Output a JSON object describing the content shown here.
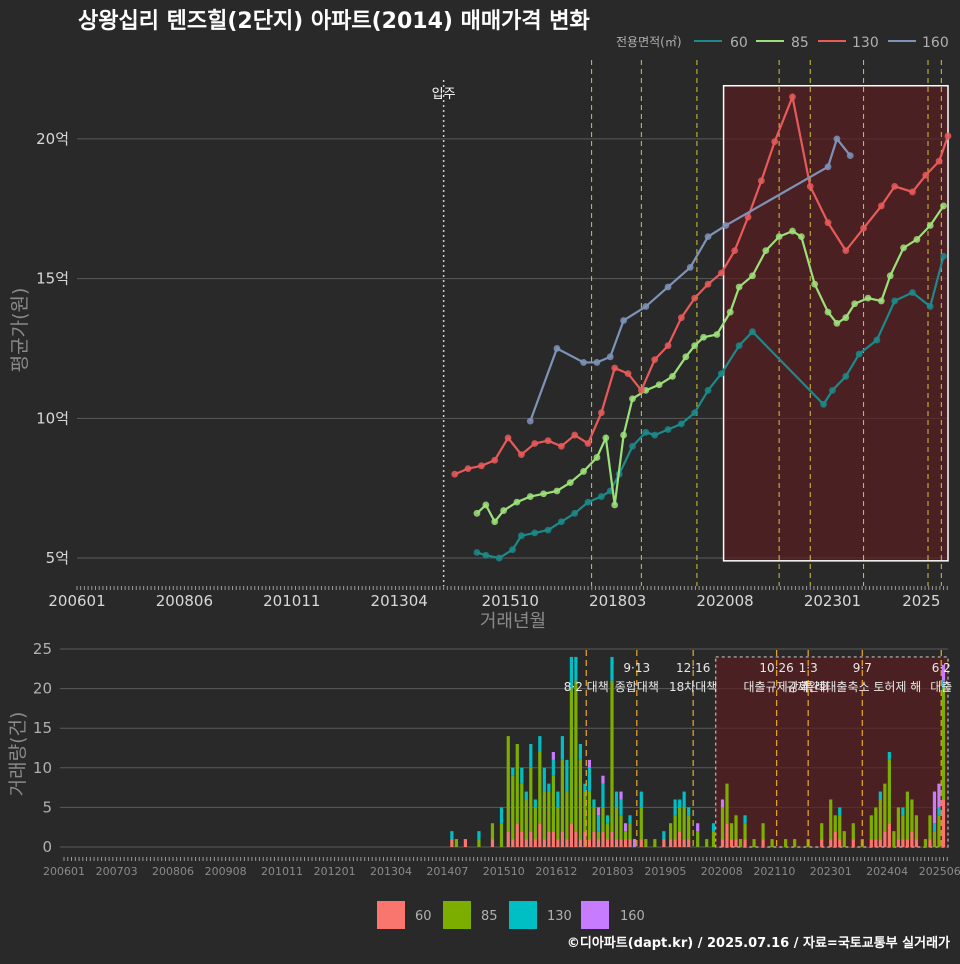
{
  "title": "상왕십리 텐즈힐(2단지) 아파트(2014) 매매가격 변화",
  "footer": "©디아파트(dapt.kr) / 2025.07.16 / 자료=국토교통부 실거래가",
  "colors": {
    "background": "#292929",
    "grid": "#5a5a5a",
    "s60": "#1b8a8a",
    "s85": "#9ce07a",
    "s130": "#e85a5a",
    "s160": "#7f93b8",
    "bar60": "#f8766d",
    "bar85": "#7cae00",
    "bar130": "#00bfc4",
    "bar160": "#c77cff",
    "policy_line": "#d4c43a",
    "highlight_fill": "#5a1d20"
  },
  "chart_data": [
    {
      "type": "line",
      "ylabel": "평균가(원)",
      "xlabel": "거래년월",
      "legend_title": "전용면적(㎡)",
      "legend": [
        "60",
        "85",
        "130",
        "160"
      ],
      "x_ticks": [
        "200601",
        "200806",
        "201011",
        "201304",
        "201510",
        "201803",
        "202008",
        "202301",
        "2025"
      ],
      "y_ticks": [
        "5억",
        "10억",
        "15억",
        "20억"
      ],
      "y_tick_values": [
        5,
        10,
        15,
        20
      ],
      "ylim": [
        4,
        23
      ],
      "xlim": [
        2006.0,
        2025.6
      ],
      "move_in_label": "입주",
      "move_in_x": 2014.25,
      "policy_lines": [
        2017.58,
        2018.7,
        2019.95,
        2021.8,
        2022.5,
        2023.7,
        2025.15,
        2025.45
      ],
      "highlight": {
        "x0": 2020.55,
        "x1": 2025.6,
        "y0": 4.9,
        "y1": 21.9
      },
      "series": [
        {
          "name": "60",
          "values": [
            [
              2015.0,
              5.2
            ],
            [
              2015.2,
              5.1
            ],
            [
              2015.5,
              5.0
            ],
            [
              2015.8,
              5.3
            ],
            [
              2016.0,
              5.8
            ],
            [
              2016.3,
              5.9
            ],
            [
              2016.6,
              6.0
            ],
            [
              2016.9,
              6.3
            ],
            [
              2017.2,
              6.6
            ],
            [
              2017.5,
              7.0
            ],
            [
              2017.8,
              7.2
            ],
            [
              2018.0,
              7.4
            ],
            [
              2018.2,
              8.0
            ],
            [
              2018.5,
              9.0
            ],
            [
              2018.8,
              9.5
            ],
            [
              2019.0,
              9.4
            ],
            [
              2019.3,
              9.6
            ],
            [
              2019.6,
              9.8
            ],
            [
              2019.9,
              10.2
            ],
            [
              2020.2,
              11.0
            ],
            [
              2020.5,
              11.6
            ],
            [
              2020.9,
              12.6
            ],
            [
              2021.2,
              13.1
            ],
            [
              2022.8,
              10.5
            ],
            [
              2023.0,
              11.0
            ],
            [
              2023.3,
              11.5
            ],
            [
              2023.6,
              12.3
            ],
            [
              2024.0,
              12.8
            ],
            [
              2024.4,
              14.2
            ],
            [
              2024.8,
              14.5
            ],
            [
              2025.2,
              14.0
            ],
            [
              2025.5,
              15.8
            ]
          ]
        },
        {
          "name": "85",
          "values": [
            [
              2015.0,
              6.6
            ],
            [
              2015.2,
              6.9
            ],
            [
              2015.4,
              6.3
            ],
            [
              2015.6,
              6.7
            ],
            [
              2015.9,
              7.0
            ],
            [
              2016.2,
              7.2
            ],
            [
              2016.5,
              7.3
            ],
            [
              2016.8,
              7.4
            ],
            [
              2017.1,
              7.7
            ],
            [
              2017.4,
              8.1
            ],
            [
              2017.7,
              8.6
            ],
            [
              2017.9,
              9.3
            ],
            [
              2018.1,
              6.9
            ],
            [
              2018.3,
              9.4
            ],
            [
              2018.5,
              10.7
            ],
            [
              2018.8,
              11.0
            ],
            [
              2019.1,
              11.2
            ],
            [
              2019.4,
              11.5
            ],
            [
              2019.7,
              12.2
            ],
            [
              2019.9,
              12.6
            ],
            [
              2020.1,
              12.9
            ],
            [
              2020.4,
              13.0
            ],
            [
              2020.7,
              13.8
            ],
            [
              2020.9,
              14.7
            ],
            [
              2021.2,
              15.1
            ],
            [
              2021.5,
              16.0
            ],
            [
              2021.8,
              16.5
            ],
            [
              2022.1,
              16.7
            ],
            [
              2022.3,
              16.5
            ],
            [
              2022.6,
              14.8
            ],
            [
              2022.9,
              13.8
            ],
            [
              2023.1,
              13.4
            ],
            [
              2023.3,
              13.6
            ],
            [
              2023.5,
              14.1
            ],
            [
              2023.8,
              14.3
            ],
            [
              2024.1,
              14.2
            ],
            [
              2024.3,
              15.1
            ],
            [
              2024.6,
              16.1
            ],
            [
              2024.9,
              16.4
            ],
            [
              2025.2,
              16.9
            ],
            [
              2025.5,
              17.6
            ]
          ]
        },
        {
          "name": "130",
          "values": [
            [
              2014.5,
              8.0
            ],
            [
              2014.8,
              8.2
            ],
            [
              2015.1,
              8.3
            ],
            [
              2015.4,
              8.5
            ],
            [
              2015.7,
              9.3
            ],
            [
              2016.0,
              8.7
            ],
            [
              2016.3,
              9.1
            ],
            [
              2016.6,
              9.2
            ],
            [
              2016.9,
              9.0
            ],
            [
              2017.2,
              9.4
            ],
            [
              2017.5,
              9.1
            ],
            [
              2017.8,
              10.2
            ],
            [
              2018.1,
              11.8
            ],
            [
              2018.4,
              11.6
            ],
            [
              2018.7,
              11.0
            ],
            [
              2019.0,
              12.1
            ],
            [
              2019.3,
              12.6
            ],
            [
              2019.6,
              13.6
            ],
            [
              2019.9,
              14.3
            ],
            [
              2020.2,
              14.8
            ],
            [
              2020.5,
              15.2
            ],
            [
              2020.8,
              16.0
            ],
            [
              2021.1,
              17.2
            ],
            [
              2021.4,
              18.5
            ],
            [
              2021.7,
              19.9
            ],
            [
              2022.1,
              21.5
            ],
            [
              2022.5,
              18.3
            ],
            [
              2022.9,
              17.0
            ],
            [
              2023.3,
              16.0
            ],
            [
              2023.7,
              16.8
            ],
            [
              2024.1,
              17.6
            ],
            [
              2024.4,
              18.3
            ],
            [
              2024.8,
              18.1
            ],
            [
              2025.1,
              18.7
            ],
            [
              2025.4,
              19.2
            ],
            [
              2025.6,
              20.1
            ]
          ]
        },
        {
          "name": "160",
          "values": [
            [
              2016.2,
              9.9
            ],
            [
              2016.8,
              12.5
            ],
            [
              2017.4,
              12.0
            ],
            [
              2017.7,
              12.0
            ],
            [
              2018.0,
              12.2
            ],
            [
              2018.3,
              13.5
            ],
            [
              2018.8,
              14.0
            ],
            [
              2019.3,
              14.7
            ],
            [
              2019.8,
              15.4
            ],
            [
              2020.2,
              16.5
            ],
            [
              2020.6,
              16.9
            ],
            [
              2022.9,
              19.0
            ],
            [
              2023.1,
              20.0
            ],
            [
              2023.4,
              19.4
            ]
          ]
        }
      ]
    },
    {
      "type": "bar",
      "ylabel": "거래량(건)",
      "stacked": true,
      "legend": [
        "60",
        "85",
        "130",
        "160"
      ],
      "x_ticks": [
        "200601",
        "200703",
        "200806",
        "200908",
        "201011",
        "201201",
        "201304",
        "201407",
        "201510",
        "201612",
        "201803",
        "201905",
        "202008",
        "202110",
        "202301",
        "202404",
        "202506"
      ],
      "y_ticks": [
        "0",
        "5",
        "10",
        "15",
        "20",
        "25"
      ],
      "y_tick_values": [
        0,
        5,
        10,
        15,
        20,
        25
      ],
      "ylim": [
        0,
        25
      ],
      "policy_annotations": [
        {
          "x": 2017.58,
          "label1": "",
          "label2": "8·2 대책"
        },
        {
          "x": 2018.7,
          "label1": "9·13",
          "label2": "종합대책"
        },
        {
          "x": 2019.95,
          "label1": "12·16",
          "label2": "18차대책"
        },
        {
          "x": 2021.8,
          "label1": "10·26",
          "label2": "대출규제강화"
        },
        {
          "x": 2022.5,
          "label1": "1·3",
          "label2": "규제완화"
        },
        {
          "x": 2023.7,
          "label1": "9·7",
          "label2": "특례대출축소 토허제 해"
        },
        {
          "x": 2025.45,
          "label1": "6·2",
          "label2": "대출"
        }
      ],
      "highlight": {
        "x0": 2020.45,
        "x1": 2025.6,
        "y0": 0,
        "y1": 24
      },
      "bars": [
        [
          2014.6,
          1,
          0,
          1,
          0
        ],
        [
          2014.7,
          0,
          1,
          0,
          0
        ],
        [
          2014.9,
          1,
          0,
          0,
          0
        ],
        [
          2015.2,
          0,
          1,
          1,
          0
        ],
        [
          2015.5,
          1,
          2,
          0,
          0
        ],
        [
          2015.7,
          0,
          3,
          2,
          0
        ],
        [
          2015.85,
          2,
          12,
          0,
          0
        ],
        [
          2015.95,
          1,
          8,
          1,
          0
        ],
        [
          2016.05,
          3,
          10,
          0,
          0
        ],
        [
          2016.15,
          2,
          6,
          2,
          0
        ],
        [
          2016.25,
          1,
          5,
          1,
          0
        ],
        [
          2016.35,
          2,
          8,
          3,
          0
        ],
        [
          2016.45,
          1,
          4,
          1,
          0
        ],
        [
          2016.55,
          3,
          9,
          2,
          0
        ],
        [
          2016.65,
          1,
          6,
          3,
          0
        ],
        [
          2016.75,
          2,
          5,
          1,
          0
        ],
        [
          2016.85,
          2,
          7,
          2,
          1
        ],
        [
          2016.95,
          1,
          4,
          2,
          0
        ],
        [
          2017.05,
          2,
          9,
          3,
          0
        ],
        [
          2017.15,
          1,
          6,
          4,
          0
        ],
        [
          2017.25,
          3,
          17,
          4,
          0
        ],
        [
          2017.35,
          2,
          19,
          3,
          0
        ],
        [
          2017.45,
          1,
          10,
          2,
          0
        ],
        [
          2017.55,
          2,
          5,
          1,
          0
        ],
        [
          2017.65,
          1,
          6,
          3,
          1
        ],
        [
          2017.75,
          2,
          3,
          1,
          0
        ],
        [
          2017.85,
          1,
          1,
          2,
          1
        ],
        [
          2017.95,
          2,
          3,
          3,
          1
        ],
        [
          2018.05,
          1,
          2,
          1,
          0
        ],
        [
          2018.15,
          2,
          19,
          3,
          0
        ],
        [
          2018.25,
          1,
          4,
          2,
          0
        ],
        [
          2018.35,
          1,
          3,
          2,
          1
        ],
        [
          2018.45,
          1,
          1,
          0,
          1
        ],
        [
          2018.55,
          1,
          2,
          1,
          0
        ],
        [
          2018.65,
          0,
          0,
          0,
          1
        ],
        [
          2018.8,
          1,
          4,
          2,
          0
        ],
        [
          2018.9,
          0,
          1,
          0,
          0
        ],
        [
          2019.1,
          0,
          1,
          0,
          0
        ],
        [
          2019.3,
          1,
          0,
          1,
          0
        ],
        [
          2019.45,
          1,
          2,
          0,
          0
        ],
        [
          2019.55,
          1,
          3,
          2,
          0
        ],
        [
          2019.65,
          2,
          3,
          1,
          0
        ],
        [
          2019.75,
          1,
          4,
          2,
          0
        ],
        [
          2019.85,
          1,
          3,
          1,
          0
        ],
        [
          2020.05,
          0,
          2,
          0,
          1
        ],
        [
          2020.25,
          0,
          1,
          0,
          0
        ],
        [
          2020.4,
          0,
          2,
          1,
          0
        ],
        [
          2020.6,
          1,
          4,
          0,
          1
        ],
        [
          2020.7,
          3,
          5,
          0,
          0
        ],
        [
          2020.8,
          1,
          2,
          0,
          0
        ],
        [
          2020.9,
          1,
          3,
          0,
          0
        ],
        [
          2021.0,
          0,
          1,
          0,
          0
        ],
        [
          2021.1,
          1,
          2,
          1,
          0
        ],
        [
          2021.3,
          0,
          1,
          0,
          0
        ],
        [
          2021.5,
          1,
          2,
          0,
          0
        ],
        [
          2021.7,
          0,
          1,
          0,
          0
        ],
        [
          2022.0,
          0,
          1,
          0,
          0
        ],
        [
          2022.2,
          0,
          1,
          0,
          0
        ],
        [
          2022.5,
          0,
          1,
          0,
          0
        ],
        [
          2022.8,
          1,
          2,
          0,
          0
        ],
        [
          2023.0,
          1,
          5,
          0,
          0
        ],
        [
          2023.1,
          2,
          2,
          0,
          0
        ],
        [
          2023.2,
          1,
          3,
          1,
          0
        ],
        [
          2023.3,
          0,
          2,
          0,
          0
        ],
        [
          2023.5,
          1,
          2,
          0,
          0
        ],
        [
          2023.7,
          0,
          1,
          0,
          0
        ],
        [
          2023.9,
          1,
          3,
          0,
          0
        ],
        [
          2024.0,
          1,
          4,
          0,
          0
        ],
        [
          2024.1,
          1,
          5,
          1,
          0
        ],
        [
          2024.2,
          2,
          6,
          0,
          0
        ],
        [
          2024.3,
          3,
          8,
          1,
          0
        ],
        [
          2024.4,
          0,
          2,
          0,
          0
        ],
        [
          2024.5,
          1,
          4,
          0,
          0
        ],
        [
          2024.6,
          1,
          3,
          1,
          0
        ],
        [
          2024.7,
          1,
          6,
          0,
          0
        ],
        [
          2024.8,
          2,
          4,
          0,
          0
        ],
        [
          2024.9,
          1,
          3,
          0,
          0
        ],
        [
          2025.1,
          0,
          1,
          0,
          0
        ],
        [
          2025.2,
          1,
          3,
          0,
          0
        ],
        [
          2025.3,
          0,
          2,
          1,
          4
        ],
        [
          2025.4,
          0,
          4,
          1,
          3
        ],
        [
          2025.5,
          6,
          14,
          1,
          2
        ]
      ]
    }
  ]
}
